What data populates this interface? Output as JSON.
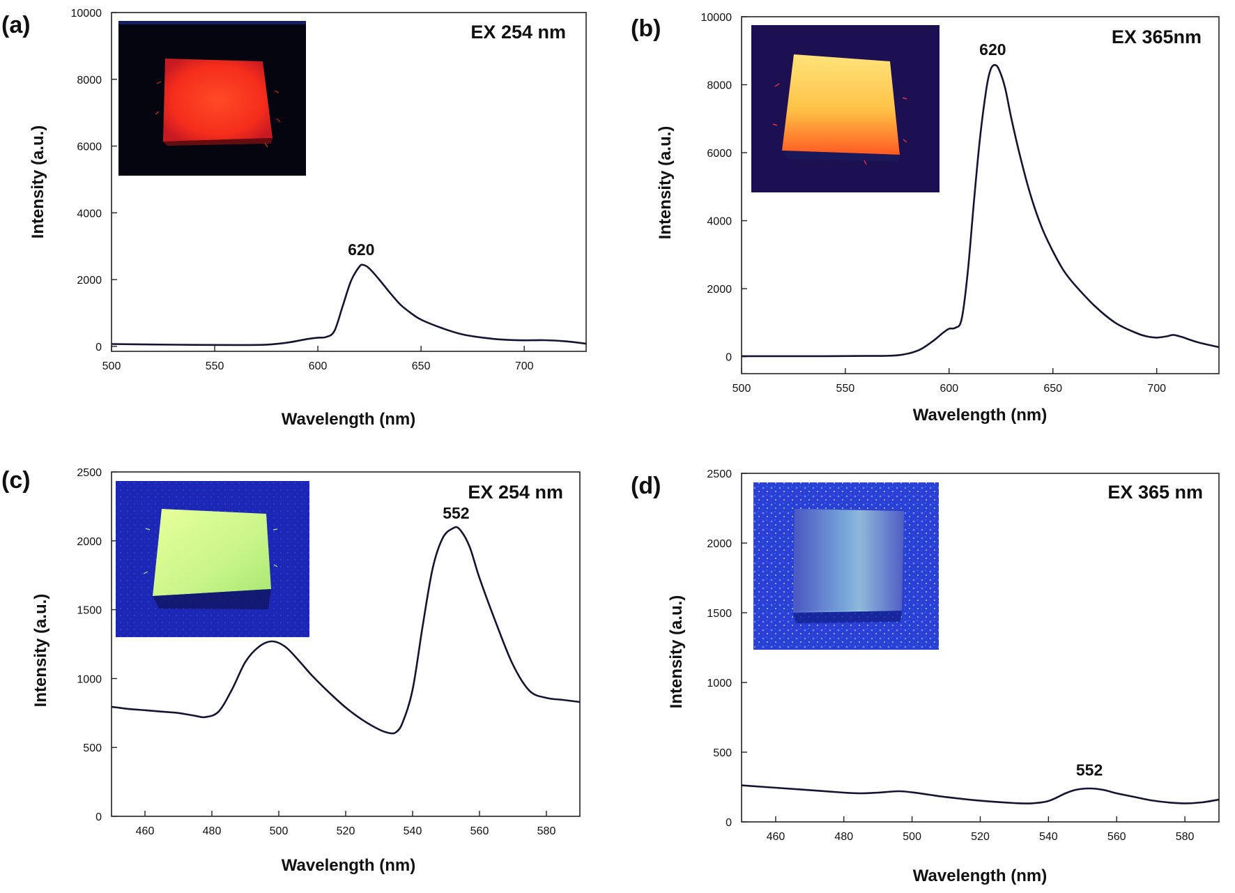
{
  "chart_data": [
    {
      "panel": "(a)",
      "type": "line",
      "annotation": "EX 254 nm",
      "peak_label": "620",
      "peak_x": 621,
      "xlabel": "Wavelength (nm)",
      "ylabel": "Intensity (a.u.)",
      "xlim": [
        500,
        730
      ],
      "ylim": [
        -150,
        10000
      ],
      "x_ticks": [
        500,
        550,
        600,
        650,
        700
      ],
      "y_ticks": [
        0,
        2000,
        4000,
        6000,
        8000,
        10000
      ],
      "inset": "photo-red",
      "series": [
        {
          "x": [
            500,
            520,
            540,
            560,
            575,
            585,
            595,
            600,
            604,
            608,
            612,
            616,
            620,
            622,
            625,
            630,
            635,
            640,
            645,
            650,
            660,
            670,
            680,
            690,
            700,
            710,
            720,
            730
          ],
          "y": [
            70,
            55,
            45,
            40,
            50,
            110,
            220,
            260,
            280,
            460,
            1200,
            1950,
            2380,
            2440,
            2330,
            1980,
            1600,
            1250,
            1000,
            800,
            550,
            360,
            260,
            200,
            180,
            185,
            150,
            80
          ]
        }
      ]
    },
    {
      "panel": "(b)",
      "type": "line",
      "annotation": "EX 365nm",
      "peak_label": "620",
      "peak_x": 621,
      "xlabel": "Wavelength (nm)",
      "ylabel": "Intensity (a.u.)",
      "xlim": [
        500,
        730
      ],
      "ylim": [
        -500,
        10000
      ],
      "x_ticks": [
        500,
        550,
        600,
        650,
        700
      ],
      "y_ticks": [
        0,
        2000,
        4000,
        6000,
        8000,
        10000
      ],
      "inset": "photo-orange",
      "series": [
        {
          "x": [
            500,
            520,
            540,
            560,
            575,
            585,
            592,
            597,
            600,
            603,
            606,
            609,
            612,
            615,
            618,
            620,
            622,
            624,
            627,
            630,
            635,
            640,
            645,
            650,
            655,
            660,
            670,
            680,
            690,
            695,
            700,
            705,
            708,
            712,
            720,
            730
          ],
          "y": [
            15,
            15,
            15,
            20,
            40,
            180,
            450,
            700,
            820,
            850,
            1100,
            2500,
            4600,
            6500,
            7900,
            8450,
            8580,
            8450,
            7900,
            7000,
            5700,
            4600,
            3750,
            3100,
            2550,
            2150,
            1500,
            1000,
            700,
            600,
            560,
            600,
            640,
            580,
            420,
            280
          ]
        }
      ]
    },
    {
      "panel": "(c)",
      "type": "line",
      "annotation": "EX 254 nm",
      "peak_label": "552",
      "peak_x": 553,
      "xlabel": "Wavelength (nm)",
      "ylabel": "Intensity (a.u.)",
      "xlim": [
        450,
        590
      ],
      "ylim": [
        0,
        2500
      ],
      "x_ticks": [
        460,
        480,
        500,
        520,
        540,
        560,
        580
      ],
      "y_ticks": [
        0,
        500,
        1000,
        1500,
        2000,
        2500
      ],
      "inset": "photo-green",
      "series": [
        {
          "x": [
            450,
            455,
            460,
            465,
            470,
            475,
            478,
            482,
            486,
            490,
            494,
            498,
            502,
            506,
            510,
            515,
            520,
            525,
            530,
            533,
            535,
            537,
            540,
            543,
            546,
            549,
            552,
            554,
            557,
            560,
            565,
            570,
            575,
            580,
            585,
            590
          ],
          "y": [
            795,
            780,
            770,
            760,
            750,
            730,
            720,
            760,
            920,
            1120,
            1230,
            1270,
            1230,
            1130,
            1020,
            900,
            790,
            700,
            630,
            605,
            610,
            680,
            920,
            1380,
            1800,
            2020,
            2090,
            2085,
            1960,
            1730,
            1400,
            1100,
            910,
            860,
            845,
            830
          ]
        }
      ]
    },
    {
      "panel": "(d)",
      "type": "line",
      "annotation": "EX 365 nm",
      "peak_label": "552",
      "peak_x": 552,
      "xlabel": "Wavelength (nm)",
      "ylabel": "Intensity (a.u.)",
      "xlim": [
        450,
        590
      ],
      "ylim": [
        0,
        2500
      ],
      "x_ticks": [
        460,
        480,
        500,
        520,
        540,
        560,
        580
      ],
      "y_ticks": [
        0,
        500,
        1000,
        1500,
        2000,
        2500
      ],
      "inset": "photo-blue",
      "series": [
        {
          "x": [
            450,
            460,
            470,
            480,
            485,
            490,
            496,
            500,
            505,
            510,
            520,
            530,
            535,
            540,
            545,
            548,
            552,
            556,
            560,
            565,
            570,
            575,
            580,
            585,
            590
          ],
          "y": [
            262,
            245,
            228,
            210,
            205,
            210,
            220,
            212,
            195,
            178,
            152,
            135,
            133,
            150,
            205,
            230,
            240,
            230,
            205,
            180,
            155,
            140,
            133,
            140,
            160
          ]
        }
      ]
    }
  ]
}
